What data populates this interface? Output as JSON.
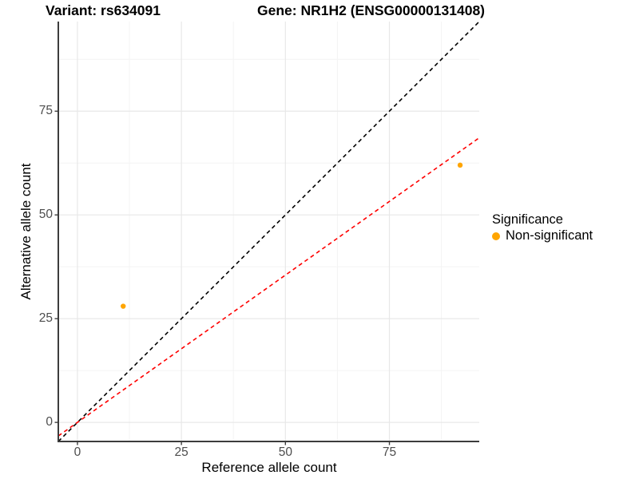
{
  "chart_data": {
    "type": "scatter",
    "title_left": "Variant: rs634091",
    "title_right": "Gene: NR1H2 (ENSG00000131408)",
    "xlabel": "Reference allele count",
    "ylabel": "Alternative allele count",
    "xlim": [
      -4.6,
      96.6
    ],
    "ylim": [
      -4.6,
      96.6
    ],
    "x_ticks": [
      0,
      25,
      50,
      75
    ],
    "y_ticks": [
      0,
      25,
      50,
      75
    ],
    "minor_ticks": [
      12.5,
      37.5,
      62.5,
      87.5
    ],
    "grid": true,
    "points": [
      {
        "x": 11,
        "y": 28,
        "series": "Non-significant"
      },
      {
        "x": 92,
        "y": 62,
        "series": "Non-significant"
      }
    ],
    "lines": [
      {
        "name": "identity-line",
        "slope": 1,
        "intercept": 0,
        "color": "#000000",
        "style": "dashed"
      },
      {
        "name": "fit-line",
        "slope": 0.71,
        "intercept": 0,
        "color": "#FF0000",
        "style": "dashed"
      }
    ],
    "legend": {
      "title": "Significance",
      "position": "right",
      "items": [
        {
          "label": "Non-significant",
          "color": "#FFA500"
        }
      ]
    },
    "colors": {
      "point": "#FFA500",
      "axis_line": "#3C3C3C",
      "tick_mark": "#3C3C3C",
      "tick_label": "#4D4D4D",
      "grid_major": "#E8E8E8",
      "grid_minor": "#F4F4F4",
      "background": "#FFFFFF"
    }
  }
}
